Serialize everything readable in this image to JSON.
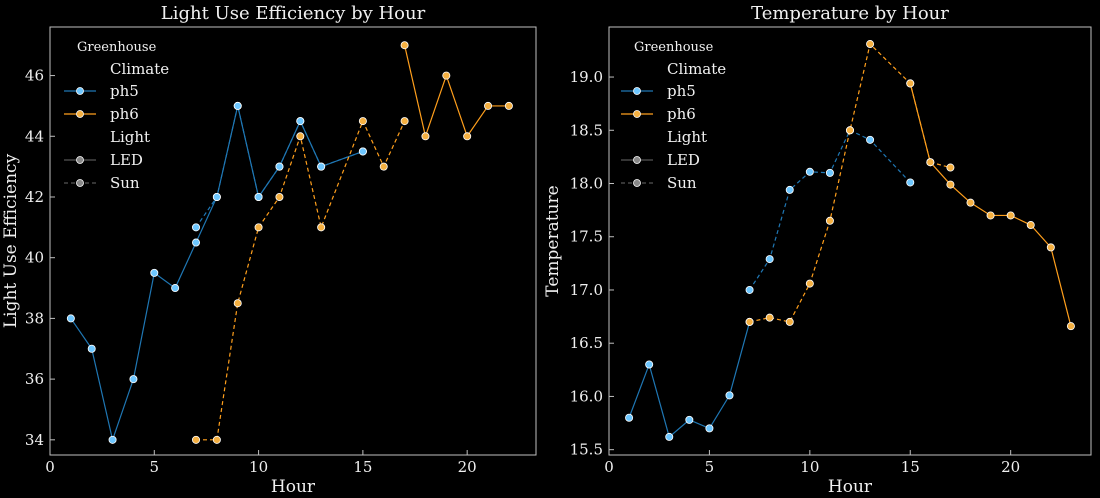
{
  "colors": {
    "background": "#000000",
    "axes": "#bfbfbf",
    "ph5": "#1f77b4",
    "ph6": "#ff9f1c",
    "ph5_marker": "#6ec7ff",
    "ph6_marker": "#f5b041"
  },
  "chart_data": [
    {
      "type": "line",
      "title": "Light Use Efficiency by Hour",
      "xlabel": "Hour",
      "ylabel": "Light Use Efficiency",
      "xlim": [
        0,
        23.3
      ],
      "ylim": [
        33.5,
        47.6
      ],
      "xticks": [
        0,
        5,
        10,
        15,
        20
      ],
      "yticks": [
        34,
        36,
        38,
        40,
        42,
        44,
        46
      ],
      "grid": false,
      "legend": {
        "position": "top-left",
        "title": "Greenhouse",
        "groups": [
          {
            "heading": "Climate",
            "entries": [
              "ph5",
              "ph6"
            ]
          },
          {
            "heading": "Light",
            "entries": [
              "LED",
              "Sun"
            ]
          }
        ]
      },
      "series": [
        {
          "climate": "ph5",
          "light": "LED",
          "x": [
            1,
            2,
            3,
            4,
            5,
            6,
            7,
            8,
            9,
            10,
            11,
            12,
            13,
            15
          ],
          "y": [
            38,
            37,
            34,
            36,
            39.5,
            39,
            40.5,
            42,
            45,
            42,
            43,
            44.5,
            43,
            43.5
          ]
        },
        {
          "climate": "ph5",
          "light": "Sun",
          "x": [
            7,
            8,
            9,
            10,
            11,
            12,
            13,
            15
          ],
          "y": [
            41,
            42,
            45,
            42,
            43,
            44.5,
            43,
            43.5
          ]
        },
        {
          "climate": "ph6",
          "light": "LED",
          "x": [
            17,
            18,
            19,
            20,
            21,
            22
          ],
          "y": [
            47,
            44,
            46,
            44,
            45,
            45
          ]
        },
        {
          "climate": "ph6",
          "light": "Sun",
          "x": [
            7,
            8,
            9,
            10,
            11,
            12,
            13,
            15,
            16,
            17
          ],
          "y": [
            34,
            34,
            38.5,
            41,
            42,
            44,
            41,
            44.5,
            43,
            44.5
          ]
        }
      ]
    },
    {
      "type": "line",
      "title": "Temperature by Hour",
      "xlabel": "Hour",
      "ylabel": "Temperature",
      "xlim": [
        0,
        24
      ],
      "ylim": [
        15.45,
        19.47
      ],
      "xticks": [
        0,
        5,
        10,
        15,
        20
      ],
      "yticks": [
        "15.5",
        "16.0",
        "16.5",
        "17.0",
        "17.5",
        "18.0",
        "18.5",
        "19.0"
      ],
      "grid": false,
      "legend": {
        "position": "top-left",
        "title": "Greenhouse",
        "groups": [
          {
            "heading": "Climate",
            "entries": [
              "ph5",
              "ph6"
            ]
          },
          {
            "heading": "Light",
            "entries": [
              "LED",
              "Sun"
            ]
          }
        ]
      },
      "series": [
        {
          "climate": "ph5",
          "light": "LED",
          "x": [
            1,
            2,
            3,
            4,
            5,
            6,
            7
          ],
          "y": [
            15.8,
            16.3,
            15.62,
            15.78,
            15.7,
            16.01,
            16.7
          ]
        },
        {
          "climate": "ph5",
          "light": "Sun",
          "x": [
            7,
            8,
            9,
            10,
            11,
            12,
            13,
            15
          ],
          "y": [
            17.0,
            17.29,
            17.94,
            18.11,
            18.1,
            18.5,
            18.41,
            18.01
          ]
        },
        {
          "climate": "ph6",
          "light": "LED",
          "x": [
            15,
            16,
            17,
            18,
            19,
            20,
            21,
            22,
            23
          ],
          "y": [
            18.94,
            18.2,
            17.99,
            17.82,
            17.7,
            17.7,
            17.61,
            17.4,
            16.66
          ]
        },
        {
          "climate": "ph6",
          "light": "Sun",
          "x": [
            7,
            8,
            9,
            10,
            11,
            12,
            13,
            15,
            16,
            17
          ],
          "y": [
            16.7,
            16.74,
            16.7,
            17.06,
            17.65,
            18.5,
            19.31,
            18.94,
            18.2,
            18.15
          ]
        }
      ]
    }
  ]
}
